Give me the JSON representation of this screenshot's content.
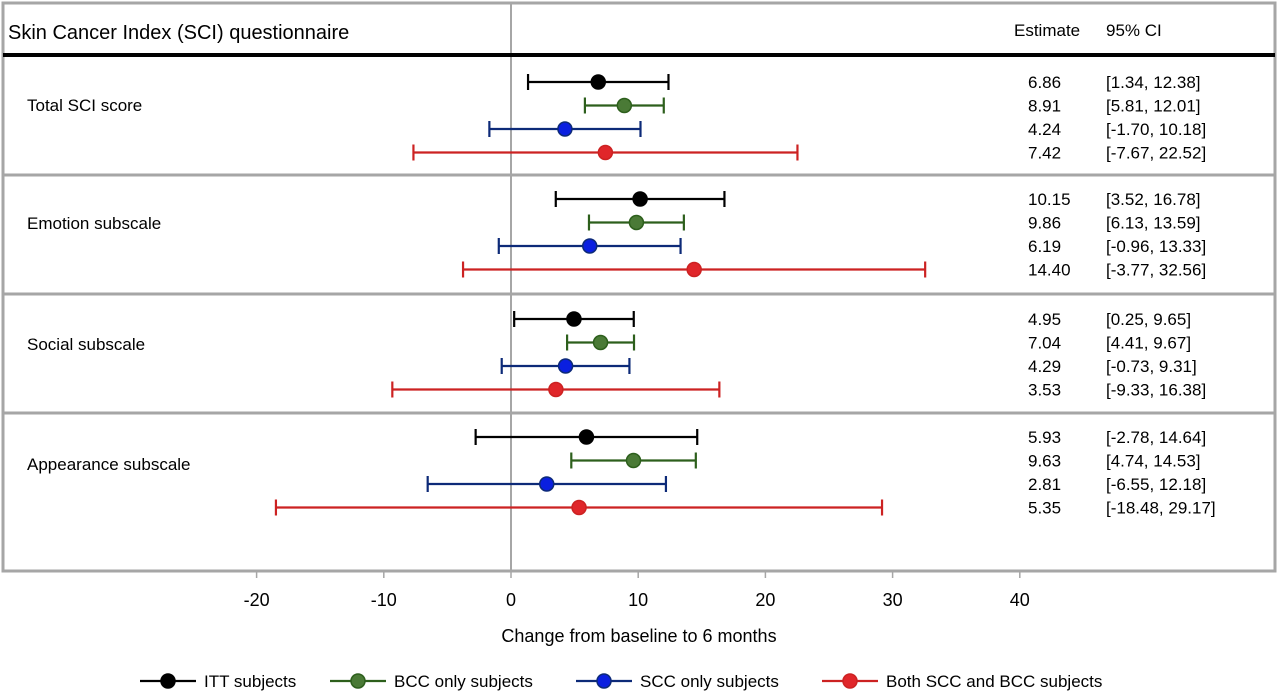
{
  "chart_data": {
    "type": "forest",
    "title": "Skin Cancer Index (SCI) questionnaire",
    "estimate_header": "Estimate",
    "ci_header": "95% CI",
    "xlabel": "Change from baseline to 6 months",
    "xlim": [
      -20,
      40
    ],
    "xticks": [
      -20,
      -10,
      0,
      10,
      20,
      30,
      40
    ],
    "xtick_labels": [
      "-20",
      "-10",
      "0",
      "10",
      "20",
      "30",
      "40"
    ],
    "reference_line": 0,
    "series": [
      {
        "name": "ITT subjects",
        "color": "#000000"
      },
      {
        "name": "BCC only subjects",
        "color": "#4a7a36"
      },
      {
        "name": "SCC only subjects",
        "color": "#0a1fe0"
      },
      {
        "name": "Both SCC and BCC subjects",
        "color": "#e0262a"
      }
    ],
    "line_colors": [
      "#000000",
      "#2d5f1c",
      "#0d2a78",
      "#cc2222"
    ],
    "groups": [
      {
        "label": "Total SCI score",
        "rows": [
          {
            "estimate": 6.86,
            "lo": 1.34,
            "hi": 12.38,
            "estimate_text": "6.86",
            "ci_text": "[1.34, 12.38]"
          },
          {
            "estimate": 8.91,
            "lo": 5.81,
            "hi": 12.01,
            "estimate_text": "8.91",
            "ci_text": "[5.81, 12.01]"
          },
          {
            "estimate": 4.24,
            "lo": -1.7,
            "hi": 10.18,
            "estimate_text": "4.24",
            "ci_text": "[-1.70, 10.18]"
          },
          {
            "estimate": 7.42,
            "lo": -7.67,
            "hi": 22.52,
            "estimate_text": "7.42",
            "ci_text": "[-7.67, 22.52]"
          }
        ]
      },
      {
        "label": "Emotion subscale",
        "rows": [
          {
            "estimate": 10.15,
            "lo": 3.52,
            "hi": 16.78,
            "estimate_text": "10.15",
            "ci_text": "[3.52, 16.78]"
          },
          {
            "estimate": 9.86,
            "lo": 6.13,
            "hi": 13.59,
            "estimate_text": "9.86",
            "ci_text": "[6.13, 13.59]"
          },
          {
            "estimate": 6.19,
            "lo": -0.96,
            "hi": 13.33,
            "estimate_text": "6.19",
            "ci_text": "[-0.96, 13.33]"
          },
          {
            "estimate": 14.4,
            "lo": -3.77,
            "hi": 32.56,
            "estimate_text": "14.40",
            "ci_text": "[-3.77, 32.56]"
          }
        ]
      },
      {
        "label": "Social subscale",
        "rows": [
          {
            "estimate": 4.95,
            "lo": 0.25,
            "hi": 9.65,
            "estimate_text": "4.95",
            "ci_text": "[0.25, 9.65]"
          },
          {
            "estimate": 7.04,
            "lo": 4.41,
            "hi": 9.67,
            "estimate_text": "7.04",
            "ci_text": "[4.41, 9.67]"
          },
          {
            "estimate": 4.29,
            "lo": -0.73,
            "hi": 9.31,
            "estimate_text": "4.29",
            "ci_text": "[-0.73, 9.31]"
          },
          {
            "estimate": 3.53,
            "lo": -9.33,
            "hi": 16.38,
            "estimate_text": "3.53",
            "ci_text": "[-9.33, 16.38]"
          }
        ]
      },
      {
        "label": "Appearance subscale",
        "rows": [
          {
            "estimate": 5.93,
            "lo": -2.78,
            "hi": 14.64,
            "estimate_text": "5.93",
            "ci_text": "[-2.78, 14.64]"
          },
          {
            "estimate": 9.63,
            "lo": 4.74,
            "hi": 14.53,
            "estimate_text": "9.63",
            "ci_text": "[4.74, 14.53]"
          },
          {
            "estimate": 2.81,
            "lo": -6.55,
            "hi": 12.18,
            "estimate_text": "2.81",
            "ci_text": "[-6.55, 12.18]"
          },
          {
            "estimate": 5.35,
            "lo": -18.48,
            "hi": 29.17,
            "estimate_text": "5.35",
            "ci_text": "[-18.48, 29.17]"
          }
        ]
      }
    ],
    "legend_position": "bottom"
  }
}
